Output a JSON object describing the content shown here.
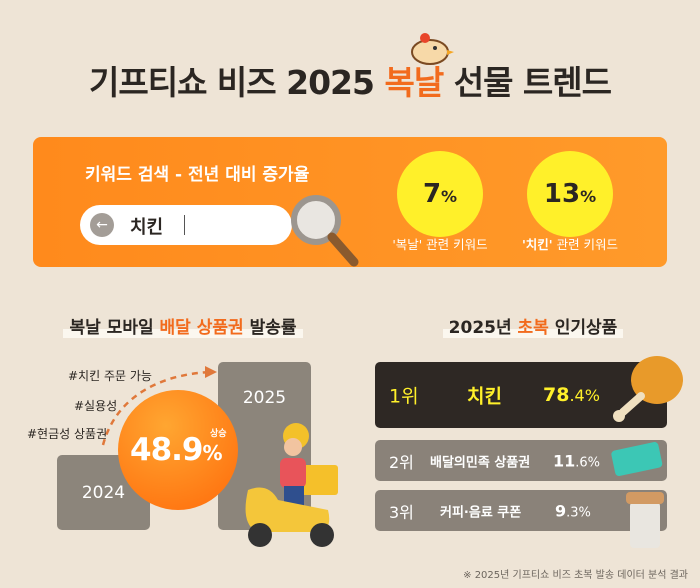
{
  "title": {
    "pre": "기프티쇼 비즈 2025 ",
    "highlight": "복날",
    "post": " 선물 트렌드"
  },
  "keyword": {
    "heading": "키워드 검색 - 전년 대비 증가율",
    "query": "치킨",
    "stats": [
      {
        "value": "7",
        "unit": "%",
        "label_quote": "'복날'",
        "label_rest": " 관련 키워드"
      },
      {
        "value": "13",
        "unit": "%",
        "label_quote": "'치킨'",
        "label_rest": " 관련 키워드"
      }
    ]
  },
  "delivery": {
    "title_pre": "복날 모바일 ",
    "title_hl": "배달 상품권",
    "title_post": " 발송률",
    "tags": [
      "#치킨 주문 가능",
      "#실용성",
      "#현금성 상품권"
    ],
    "year_prev": "2024",
    "year_curr": "2025",
    "increase_value": "48.9",
    "increase_unit": "%",
    "increase_label": "상승"
  },
  "popular": {
    "title_pre": "2025년 ",
    "title_hl": "초복",
    "title_post": " 인기상품",
    "items": [
      {
        "rank": "1위",
        "name": "치킨",
        "value": "78",
        "decimal": ".4%"
      },
      {
        "rank": "2위",
        "name": "배달의민족 상품권",
        "value": "11",
        "decimal": ".6%"
      },
      {
        "rank": "3위",
        "name": "커피·음료 쿠폰",
        "value": "9",
        "decimal": ".3%"
      }
    ]
  },
  "footnote": "※ 2025년 기프티쇼 비즈 초복 발송 데이터 분석 결과",
  "colors": {
    "accent": "#f26b1d",
    "yellow": "#fff02a",
    "dark": "#2e2824",
    "grey": "#8a8279"
  }
}
